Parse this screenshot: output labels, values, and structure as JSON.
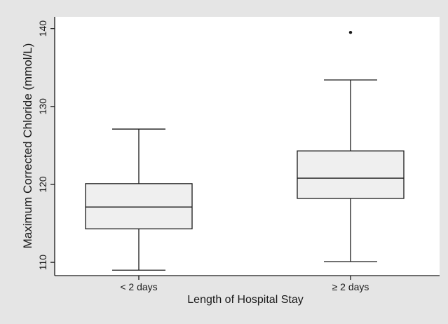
{
  "chart_data": {
    "type": "box",
    "xlabel": "Length of Hospital Stay",
    "ylabel": "Maximum Corrected Chloride (mmol/L)",
    "ylim": [
      108.3,
      141.5
    ],
    "yticks": [
      110,
      120,
      130,
      140
    ],
    "grid": false,
    "categories": [
      "< 2 days",
      "≥ 2 days"
    ],
    "boxes": [
      {
        "category": "< 2 days",
        "whisker_low": 109.0,
        "q1": 114.3,
        "median": 117.1,
        "q3": 120.1,
        "whisker_high": 127.1,
        "outliers": []
      },
      {
        "category": "≥ 2 days",
        "whisker_low": 110.1,
        "q1": 118.2,
        "median": 120.8,
        "q3": 124.3,
        "whisker_high": 133.4,
        "outliers": [
          139.5
        ]
      }
    ],
    "colors": {
      "frame_background": "#e5e5e5",
      "plot_background": "#ffffff",
      "box_fill": "#efefef",
      "line": "#1a1a1a"
    }
  }
}
